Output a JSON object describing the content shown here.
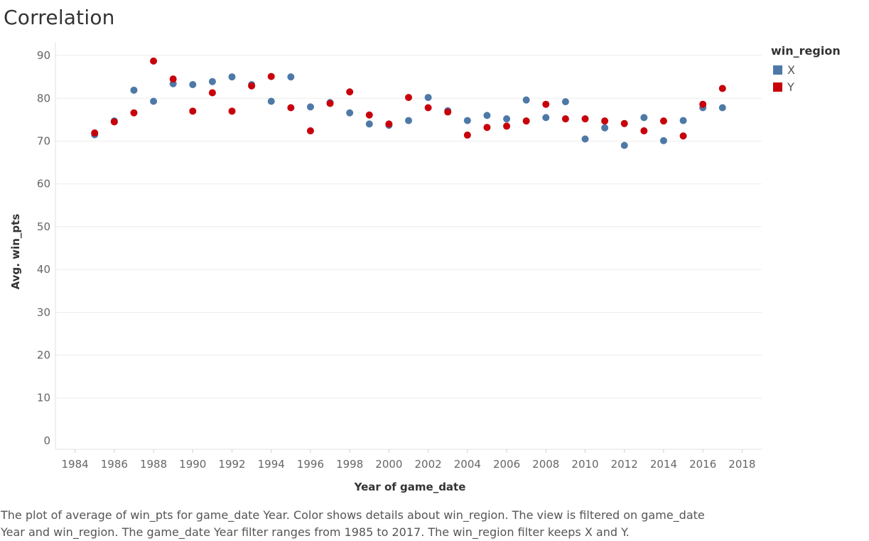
{
  "title": "Correlation",
  "legend": {
    "title": "win_region",
    "items": [
      {
        "label": "X",
        "color": "#4e79a7"
      },
      {
        "label": "Y",
        "color": "#c7000b"
      }
    ]
  },
  "caption_lines": [
    "The plot of average of win_pts for game_date Year.  Color shows details about win_region. The view is filtered on game_date",
    "Year and win_region. The game_date Year filter ranges from 1985 to 2017. The win_region filter keeps X and Y."
  ],
  "chart_data": {
    "type": "scatter",
    "title": "Correlation",
    "xlabel": "Year of game_date",
    "ylabel": "Avg. win_pts",
    "xlim": [
      1983,
      2019
    ],
    "ylim": [
      -2,
      93
    ],
    "xticks": [
      1984,
      1986,
      1988,
      1990,
      1992,
      1994,
      1996,
      1998,
      2000,
      2002,
      2004,
      2006,
      2008,
      2010,
      2012,
      2014,
      2016,
      2018
    ],
    "yticks": [
      0,
      10,
      20,
      30,
      40,
      50,
      60,
      70,
      80,
      90
    ],
    "grid": "horizontal",
    "legend_position": "right",
    "series": [
      {
        "name": "X",
        "color": "#4e79a7",
        "x": [
          1985,
          1986,
          1987,
          1988,
          1989,
          1990,
          1991,
          1992,
          1993,
          1994,
          1995,
          1996,
          1997,
          1998,
          1999,
          2000,
          2001,
          2002,
          2003,
          2004,
          2005,
          2006,
          2007,
          2008,
          2009,
          2010,
          2011,
          2012,
          2013,
          2014,
          2015,
          2016,
          2017
        ],
        "y": [
          71.5,
          74.7,
          81.9,
          79.3,
          83.4,
          83.2,
          83.9,
          85.0,
          83.2,
          79.3,
          85.0,
          78.0,
          79.0,
          76.6,
          74.0,
          73.7,
          74.8,
          80.2,
          77.1,
          74.8,
          76.0,
          75.2,
          79.6,
          75.5,
          79.2,
          70.5,
          73.1,
          69.0,
          75.5,
          70.1,
          74.8,
          77.8,
          77.8
        ]
      },
      {
        "name": "Y",
        "color": "#c7000b",
        "x": [
          1985,
          1986,
          1987,
          1988,
          1989,
          1990,
          1991,
          1992,
          1993,
          1994,
          1995,
          1996,
          1997,
          1998,
          1999,
          2000,
          2001,
          2002,
          2003,
          2004,
          2005,
          2006,
          2007,
          2008,
          2009,
          2010,
          2011,
          2012,
          2013,
          2014,
          2015,
          2016,
          2017
        ],
        "y": [
          71.9,
          74.5,
          76.6,
          88.7,
          84.5,
          77.0,
          81.3,
          77.0,
          82.9,
          85.1,
          77.8,
          72.4,
          78.8,
          81.5,
          76.1,
          74.0,
          80.2,
          77.8,
          76.8,
          71.4,
          73.2,
          73.5,
          74.7,
          78.6,
          75.2,
          75.2,
          74.7,
          74.1,
          72.4,
          74.7,
          71.2,
          78.6,
          82.3
        ]
      }
    ]
  }
}
